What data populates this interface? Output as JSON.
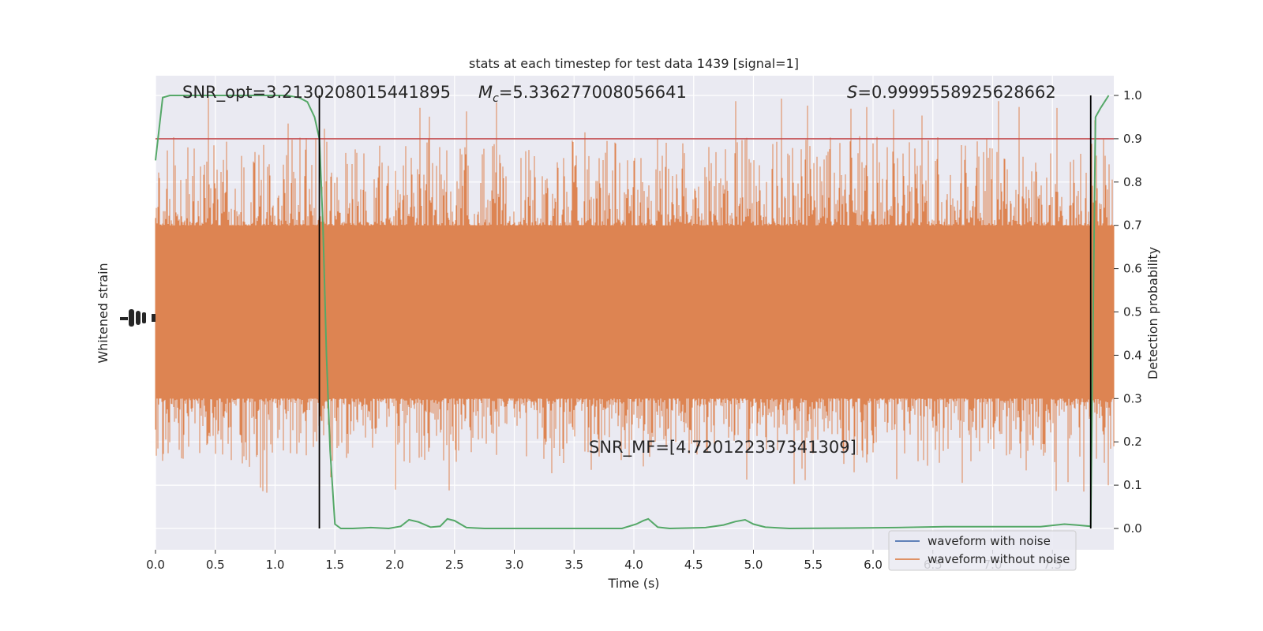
{
  "chart_data": {
    "type": "line",
    "title": "stats at each timestep for test data 1439 [signal=1]",
    "xlabel": "Time (s)",
    "ylabel_left": "Whitened strain",
    "ylabel_right": "Detection probability",
    "xlim": [
      0.0,
      8.0
    ],
    "ylim_right": [
      -0.05,
      1.05
    ],
    "x_ticks": [
      "0.0",
      "0.5",
      "1.0",
      "1.5",
      "2.0",
      "2.5",
      "3.0",
      "3.5",
      "4.0",
      "4.5",
      "5.0",
      "5.5",
      "6.0",
      "6.5",
      "7.0",
      "7.5"
    ],
    "y_ticks_right": [
      "0.0",
      "0.1",
      "0.2",
      "0.3",
      "0.4",
      "0.5",
      "0.6",
      "0.7",
      "0.8",
      "0.9",
      "1.0"
    ],
    "grid": true,
    "legend_position": "lower-right",
    "annotations": {
      "snr_opt": "SNR_opt=3.2130208015441895",
      "mc_symbol": "M",
      "mc_sub": "c",
      "mc_value": "=5.336277008056641",
      "s_symbol": "S",
      "s_value": "=0.9999558925628662",
      "snr_mf": "SNR_MF=[4.720122337341309]"
    },
    "series": [
      {
        "name": "waveform with noise",
        "color": "#4c72b0",
        "kind": "noise-trace",
        "level": 0.5
      },
      {
        "name": "waveform without noise",
        "color": "#dd8452",
        "kind": "noise-trace",
        "level": 0.5,
        "core_range": [
          0.3,
          0.7
        ],
        "spike_range": [
          0.08,
          1.0
        ]
      },
      {
        "name": "detection probability",
        "color": "#55a868",
        "kind": "line",
        "x": [
          0.0,
          0.06,
          0.12,
          0.3,
          0.6,
          0.9,
          1.1,
          1.2,
          1.27,
          1.33,
          1.37,
          1.4,
          1.43,
          1.46,
          1.5,
          1.55,
          1.65,
          1.8,
          1.95,
          2.05,
          2.12,
          2.2,
          2.3,
          2.38,
          2.44,
          2.5,
          2.6,
          2.75,
          3.0,
          3.5,
          3.9,
          4.02,
          4.08,
          4.12,
          4.2,
          4.3,
          4.6,
          4.75,
          4.85,
          4.93,
          5.0,
          5.1,
          5.3,
          5.8,
          6.2,
          6.6,
          7.0,
          7.4,
          7.6,
          7.7,
          7.82,
          7.86,
          7.9,
          7.97
        ],
        "y": [
          0.85,
          0.995,
          1.0,
          1.0,
          1.0,
          1.0,
          1.0,
          0.995,
          0.985,
          0.95,
          0.9,
          0.7,
          0.4,
          0.18,
          0.01,
          0.0,
          0.0,
          0.002,
          0.0,
          0.005,
          0.02,
          0.015,
          0.003,
          0.005,
          0.022,
          0.018,
          0.002,
          0.0,
          0.0,
          0.0,
          0.0,
          0.01,
          0.018,
          0.022,
          0.003,
          0.0,
          0.002,
          0.008,
          0.016,
          0.02,
          0.01,
          0.003,
          0.0,
          0.001,
          0.002,
          0.004,
          0.004,
          0.004,
          0.01,
          0.008,
          0.005,
          0.95,
          0.97,
          1.0
        ]
      },
      {
        "name": "threshold",
        "color": "#c44e52",
        "kind": "hline",
        "y": 0.9
      },
      {
        "name": "boundary",
        "color": "#000000",
        "kind": "vline",
        "x": [
          1.37,
          7.82
        ]
      }
    ]
  }
}
